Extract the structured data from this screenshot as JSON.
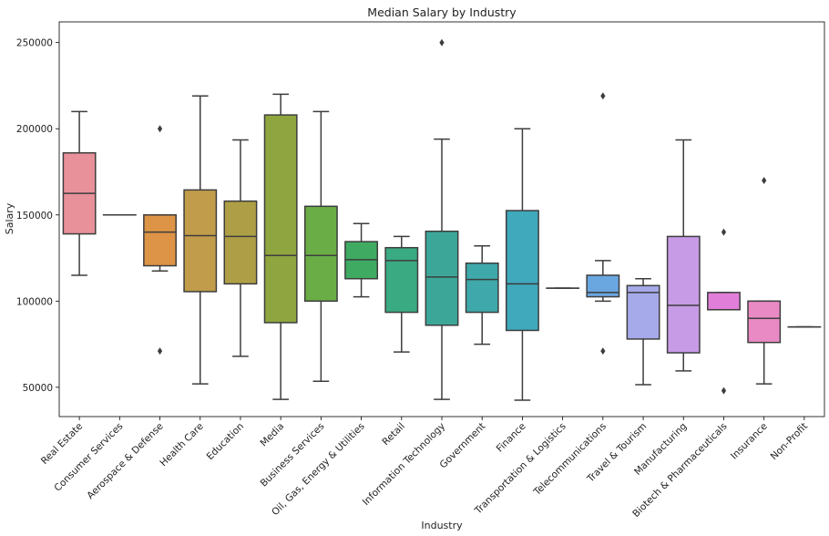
{
  "chart_data": {
    "type": "boxplot",
    "title": "Median Salary by Industry",
    "xlabel": "Industry",
    "ylabel": "Salary",
    "ylim": [
      33000,
      262000
    ],
    "yticks": [
      50000,
      100000,
      150000,
      200000,
      250000
    ],
    "ytick_labels": [
      "50000",
      "100000",
      "150000",
      "200000",
      "250000"
    ],
    "grid": false,
    "legend": "none",
    "categories": [
      "Real Estate",
      "Consumer Services",
      "Aerospace & Defense",
      "Health Care",
      "Education",
      "Media",
      "Business Services",
      "Oil, Gas, Energy & Utilities",
      "Retail",
      "Information Technology",
      "Government",
      "Finance",
      "Transportation & Logistics",
      "Telecommunications",
      "Travel & Tourism",
      "Manufacturing",
      "Biotech & Pharmaceuticals",
      "Insurance",
      "Non-Profit"
    ],
    "boxes": [
      {
        "whislo": 115000,
        "q1": 139000,
        "med": 162500,
        "q3": 186000,
        "whishi": 210000,
        "fliers": [],
        "color": "#e8919a"
      },
      {
        "whislo": 150000,
        "q1": 150000,
        "med": 150000,
        "q3": 150000,
        "whishi": 150000,
        "fliers": [],
        "color": "#e39a6e"
      },
      {
        "whislo": 117500,
        "q1": 120500,
        "med": 140000,
        "q3": 150000,
        "whishi": 150000,
        "fliers": [
          200000,
          71000
        ],
        "color": "#dd9446"
      },
      {
        "whislo": 52000,
        "q1": 105500,
        "med": 138000,
        "q3": 164500,
        "whishi": 219000,
        "fliers": [],
        "color": "#c19c4a"
      },
      {
        "whislo": 68000,
        "q1": 110000,
        "med": 137500,
        "q3": 158000,
        "whishi": 193500,
        "fliers": [],
        "color": "#ae9f47"
      },
      {
        "whislo": 43000,
        "q1": 87500,
        "med": 126500,
        "q3": 208000,
        "whishi": 220000,
        "fliers": [],
        "color": "#8fa53f"
      },
      {
        "whislo": 53500,
        "q1": 100000,
        "med": 126500,
        "q3": 155000,
        "whishi": 210000,
        "fliers": [],
        "color": "#6aad47"
      },
      {
        "whislo": 102500,
        "q1": 113000,
        "med": 124000,
        "q3": 134500,
        "whishi": 145000,
        "fliers": [],
        "color": "#3fab62"
      },
      {
        "whislo": 70500,
        "q1": 93500,
        "med": 123500,
        "q3": 131000,
        "whishi": 137500,
        "fliers": [],
        "color": "#3aaa83"
      },
      {
        "whislo": 43000,
        "q1": 86000,
        "med": 114000,
        "q3": 140500,
        "whishi": 194000,
        "fliers": [
          250000
        ],
        "color": "#3ca799"
      },
      {
        "whislo": 75000,
        "q1": 93500,
        "med": 112500,
        "q3": 122000,
        "whishi": 132000,
        "fliers": [],
        "color": "#3ea8aa"
      },
      {
        "whislo": 42500,
        "q1": 83000,
        "med": 110000,
        "q3": 152500,
        "whishi": 200000,
        "fliers": [],
        "color": "#40a9bc"
      },
      {
        "whislo": 107500,
        "q1": 107500,
        "med": 107500,
        "q3": 107500,
        "whishi": 107500,
        "fliers": [],
        "color": "#4aaed0"
      },
      {
        "whislo": 100000,
        "q1": 102500,
        "med": 105000,
        "q3": 115000,
        "whishi": 123500,
        "fliers": [
          219000,
          71000
        ],
        "color": "#6aa7e1"
      },
      {
        "whislo": 51500,
        "q1": 78000,
        "med": 105000,
        "q3": 109000,
        "whishi": 113000,
        "fliers": [],
        "color": "#a6aaea"
      },
      {
        "whislo": 59500,
        "q1": 70000,
        "med": 97500,
        "q3": 137500,
        "whishi": 193500,
        "fliers": [],
        "color": "#c79be5"
      },
      {
        "whislo": 95000,
        "q1": 95000,
        "med": 95000,
        "q3": 105000,
        "whishi": 105000,
        "fliers": [
          140000,
          48000
        ],
        "color": "#e07ed9"
      },
      {
        "whislo": 52000,
        "q1": 76000,
        "med": 90000,
        "q3": 100000,
        "whishi": 100000,
        "fliers": [
          170000
        ],
        "color": "#e98ac4"
      },
      {
        "whislo": 85000,
        "q1": 85000,
        "med": 85000,
        "q3": 85000,
        "whishi": 85000,
        "fliers": [],
        "color": "#ea8fb0"
      }
    ]
  }
}
